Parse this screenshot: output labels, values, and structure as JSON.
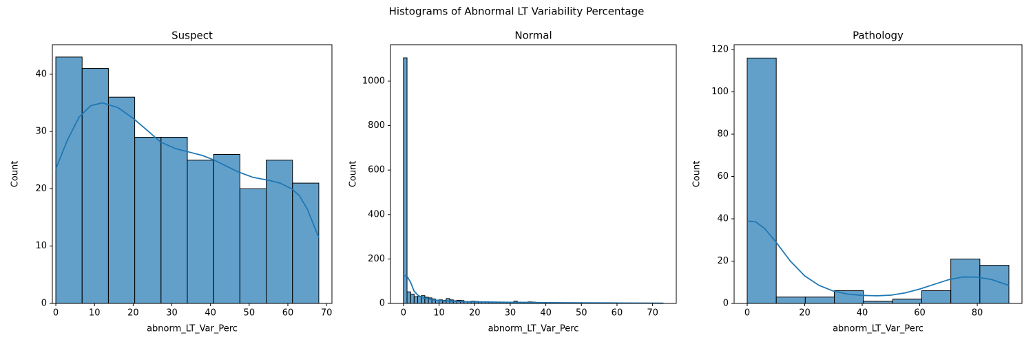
{
  "title": "Histograms of Abnormal LT Variability Percentage",
  "chart_data": [
    {
      "type": "histogram",
      "title": "Suspect",
      "xlabel": "abnorm_LT_Var_Perc",
      "ylabel": "Count",
      "color": "#1f77b4",
      "bins": [
        0,
        6.8,
        13.6,
        20.4,
        27.2,
        34,
        40.8,
        47.6,
        54.4,
        61.2,
        68
      ],
      "values": [
        43,
        41,
        36,
        29,
        29,
        25,
        26,
        20,
        25,
        21
      ],
      "line": {
        "color": "#1f77b4",
        "x": [
          0,
          3,
          6,
          9,
          12,
          16,
          20,
          24,
          27,
          31,
          34,
          38,
          41,
          44,
          47,
          51,
          55,
          58,
          61,
          63,
          65,
          68
        ],
        "values": [
          23.5,
          28.5,
          32.5,
          34.5,
          35,
          34.2,
          32.3,
          30,
          28.2,
          27,
          26.5,
          25.8,
          25,
          24,
          23,
          22,
          21.5,
          21,
          20,
          18.8,
          16.5,
          11.5
        ]
      },
      "xlim": [
        -0.9,
        71.4
      ],
      "ylim": [
        0,
        45.15
      ],
      "xticks": [
        0,
        10,
        20,
        30,
        40,
        50,
        60,
        70
      ],
      "yticks": [
        0,
        10,
        20,
        30,
        40
      ]
    },
    {
      "type": "histogram",
      "title": "Normal",
      "xlabel": "abnorm_LT_Var_Perc",
      "ylabel": "Count",
      "color": "#1f77b4",
      "bins": [
        0,
        1,
        2,
        3,
        4,
        5,
        6,
        7,
        8,
        9,
        10,
        11,
        12,
        13,
        14,
        15,
        16,
        17,
        18,
        19,
        20,
        21,
        22,
        23,
        24,
        25,
        26,
        27,
        28,
        29,
        30,
        31,
        32,
        33,
        34,
        35,
        36,
        37,
        38,
        39,
        40,
        41,
        42,
        43,
        44,
        45,
        46,
        47,
        48,
        49,
        50,
        51,
        52,
        53,
        54,
        55,
        56,
        57,
        58,
        59,
        60,
        61,
        62,
        63,
        64,
        65,
        66,
        67,
        68,
        69,
        70,
        71,
        72,
        73
      ],
      "values": [
        1105,
        52,
        42,
        30,
        32,
        35,
        28,
        25,
        20,
        15,
        16,
        14,
        22,
        16,
        12,
        14,
        13,
        8,
        8,
        10,
        9,
        8,
        7,
        7,
        6,
        6,
        5,
        5,
        5,
        5,
        6,
        10,
        6,
        5,
        5,
        7,
        6,
        4,
        4,
        4,
        3,
        3,
        3,
        3,
        3,
        3,
        3,
        2,
        2,
        2,
        3,
        2,
        2,
        2,
        2,
        2,
        2,
        2,
        3,
        2,
        2,
        1,
        1,
        1,
        1,
        1,
        1,
        1,
        1,
        1,
        1,
        1,
        1
      ],
      "line": {
        "color": "#1f77b4",
        "x": [
          0,
          1,
          2,
          3,
          4,
          5,
          6,
          8,
          10,
          12,
          15,
          20,
          25,
          30,
          35,
          40,
          50,
          60,
          73
        ],
        "values": [
          125,
          122,
          95,
          55,
          38,
          28,
          23,
          17,
          13,
          11,
          9,
          7,
          6,
          5,
          4.5,
          3.5,
          2.5,
          2,
          1
        ]
      },
      "xlim": [
        -3.65,
        76.65
      ],
      "ylim": [
        0,
        1164
      ],
      "xticks": [
        0,
        10,
        20,
        30,
        40,
        50,
        60,
        70
      ],
      "yticks": [
        0,
        200,
        400,
        600,
        800,
        1000
      ]
    },
    {
      "type": "histogram",
      "title": "Pathology",
      "xlabel": "abnorm_LT_Var_Perc",
      "ylabel": "Count",
      "color": "#1f77b4",
      "bins": [
        0,
        10.1,
        20.2,
        30.3,
        40.4,
        50.6,
        60.7,
        70.8,
        80.9,
        91
      ],
      "values": [
        116,
        3,
        3,
        6,
        1,
        2,
        6,
        21,
        18
      ],
      "line": {
        "color": "#1f77b4",
        "x": [
          0,
          3,
          6,
          10,
          15,
          20,
          25,
          30,
          35,
          40,
          45,
          50,
          55,
          60,
          65,
          70,
          75,
          80,
          85,
          91
        ],
        "values": [
          39,
          38.5,
          35.5,
          29,
          20,
          13,
          8.5,
          5.8,
          4.4,
          3.8,
          3.6,
          3.9,
          5,
          6.8,
          9,
          11.2,
          12.5,
          12.4,
          11.3,
          8.5
        ]
      },
      "xlim": [
        -4.55,
        95.55
      ],
      "ylim": [
        0,
        122.3
      ],
      "xticks": [
        0,
        20,
        40,
        60,
        80
      ],
      "yticks": [
        0,
        20,
        40,
        60,
        80,
        100,
        120
      ]
    }
  ]
}
